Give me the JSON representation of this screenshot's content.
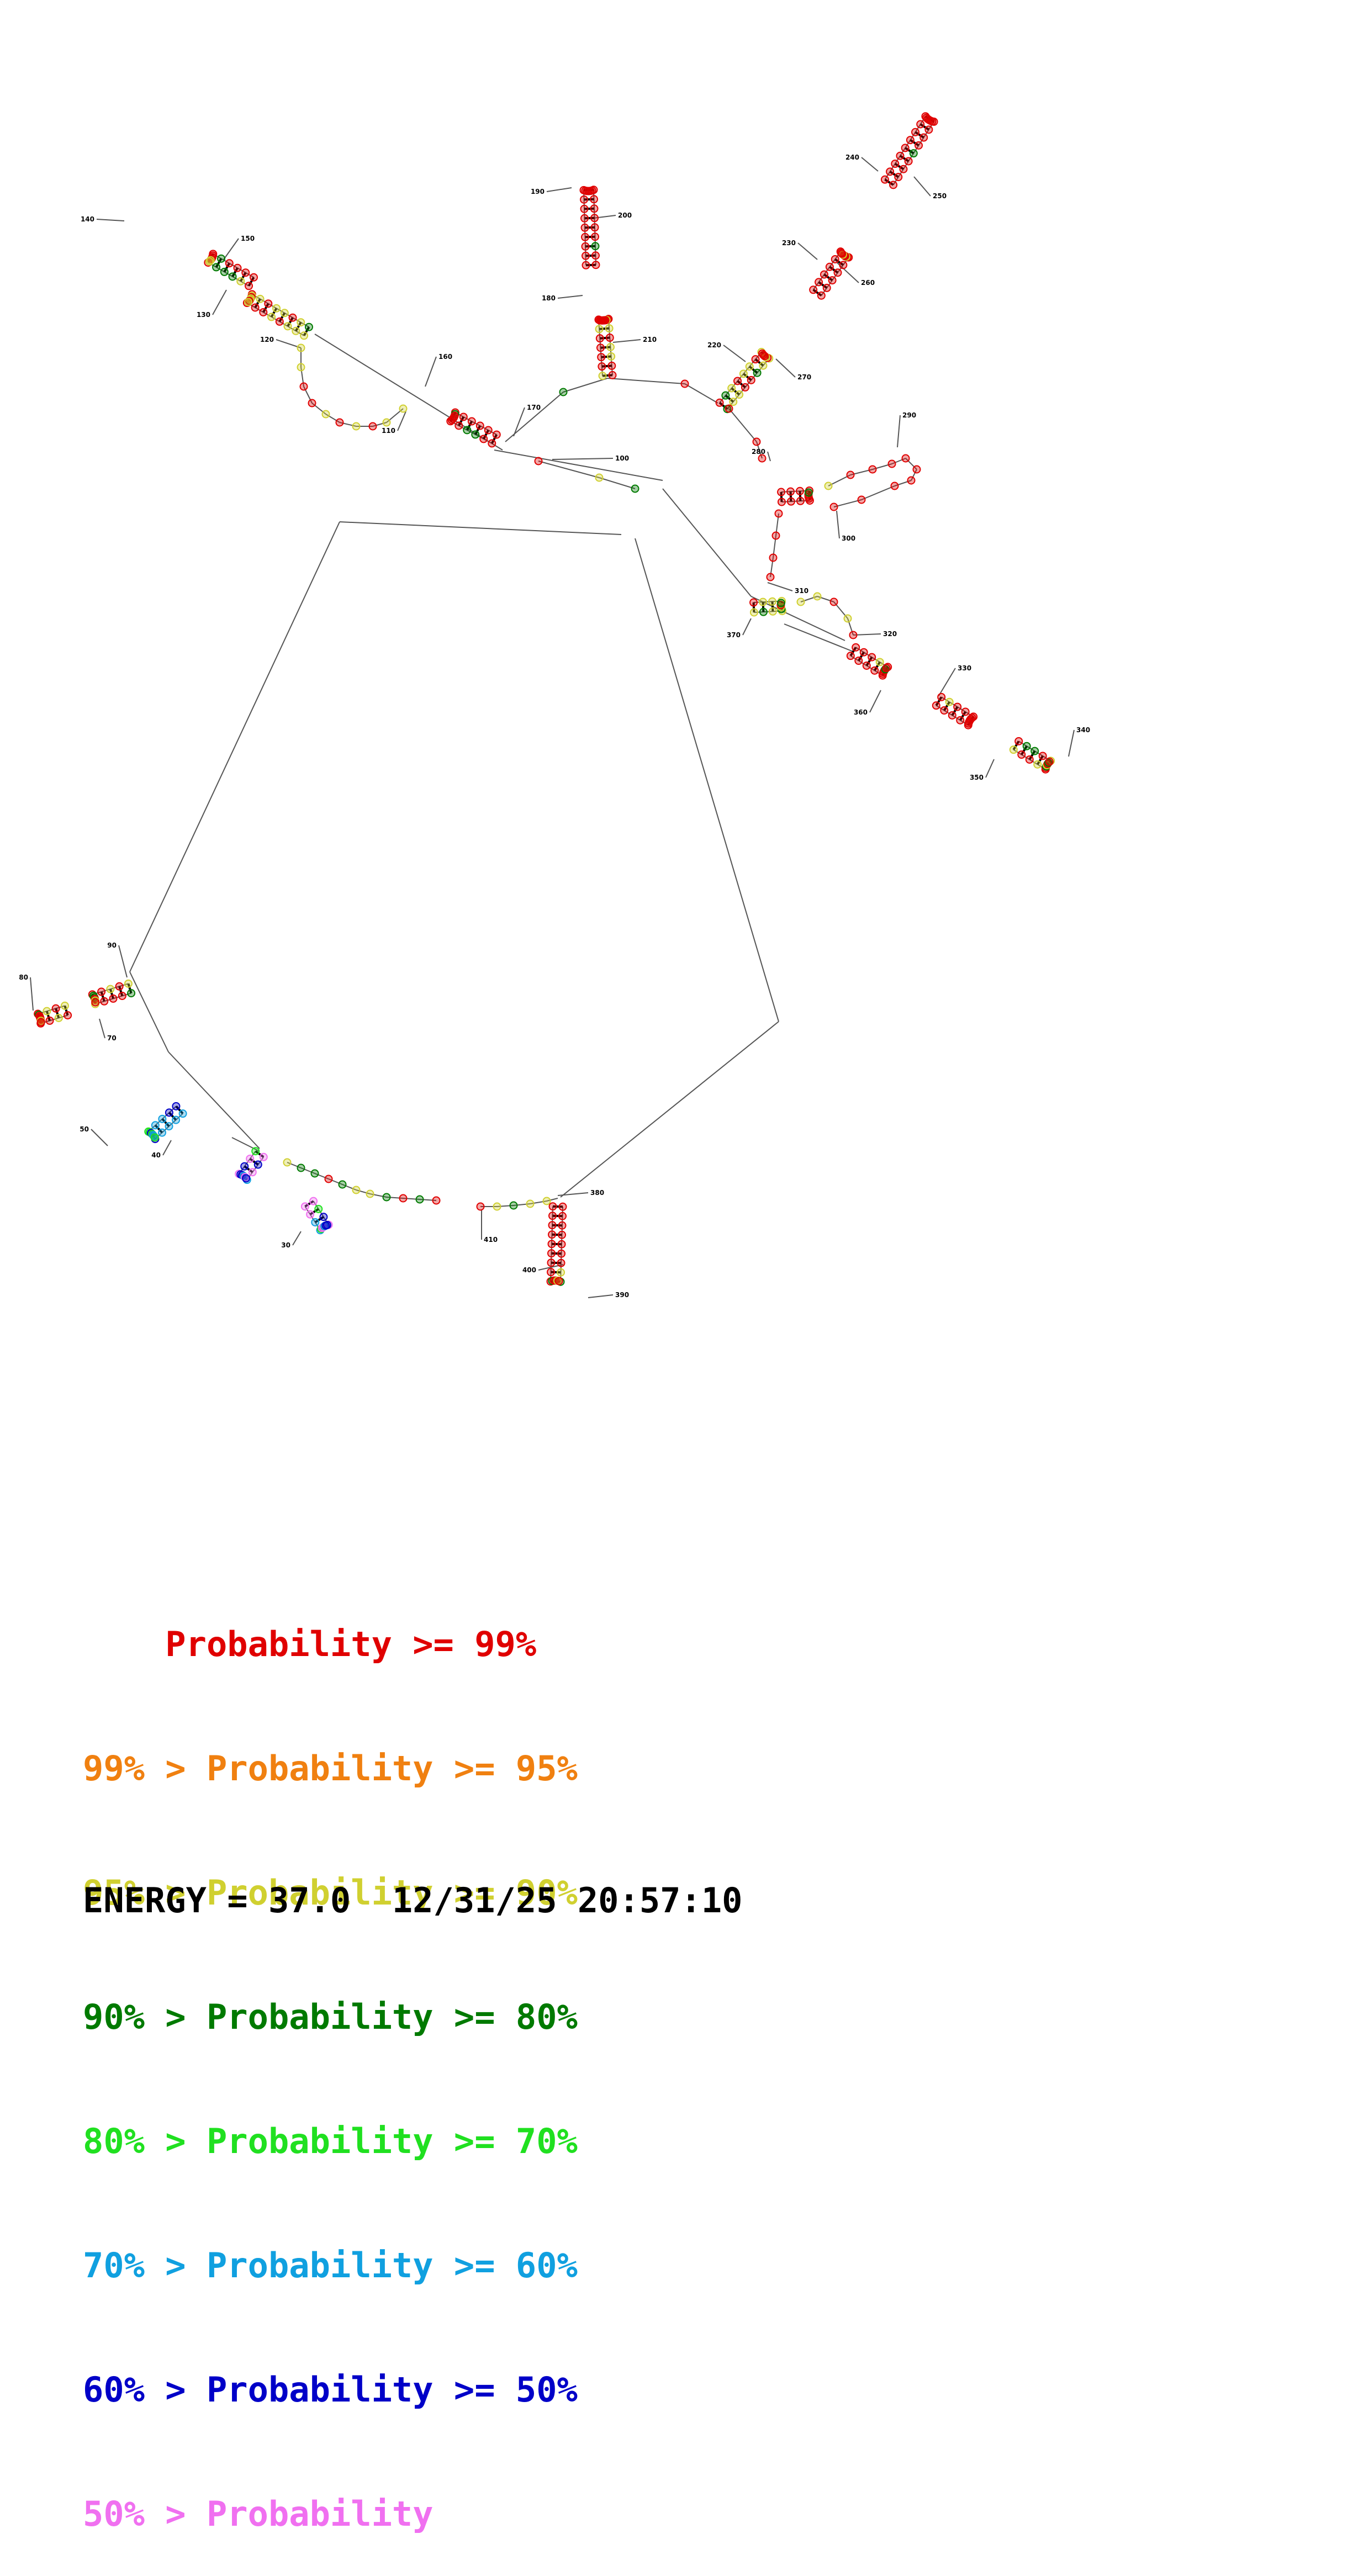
{
  "diagram": {
    "type": "rna-secondary-structure",
    "position_labels": [
      "30",
      "40",
      "50",
      "70",
      "80",
      "90",
      "100",
      "110",
      "120",
      "130",
      "140",
      "150",
      "160",
      "170",
      "180",
      "190",
      "200",
      "210",
      "220",
      "230",
      "240",
      "250",
      "260",
      "270",
      "280",
      "290",
      "300",
      "310",
      "320",
      "330",
      "340",
      "350",
      "360",
      "370",
      "380",
      "390",
      "400",
      "410"
    ],
    "probability_colors": {
      "p99": "#e00000",
      "p95": "#f08010",
      "p90": "#d0d030",
      "p80": "#007a00",
      "p70": "#20e020",
      "p60": "#10a0e0",
      "p50": "#0000c8",
      "plow": "#f070f0"
    }
  },
  "legend": [
    {
      "text": "    Probability >= 99%",
      "color": "#e00000"
    },
    {
      "text": "99% > Probability >= 95%",
      "color": "#f08010"
    },
    {
      "text": "95% > Probability >= 90%",
      "color": "#d0d030"
    },
    {
      "text": "90% > Probability >= 80%",
      "color": "#007a00"
    },
    {
      "text": "80% > Probability >= 70%",
      "color": "#20e020"
    },
    {
      "text": "70% > Probability >= 60%",
      "color": "#10a0e0"
    },
    {
      "text": "60% > Probability >= 50%",
      "color": "#0000c8"
    },
    {
      "text": "50% > Probability",
      "color": "#f070f0"
    }
  ],
  "footer": {
    "energy": "ENERGY = 37.0  12/31/25 20:57:10"
  }
}
